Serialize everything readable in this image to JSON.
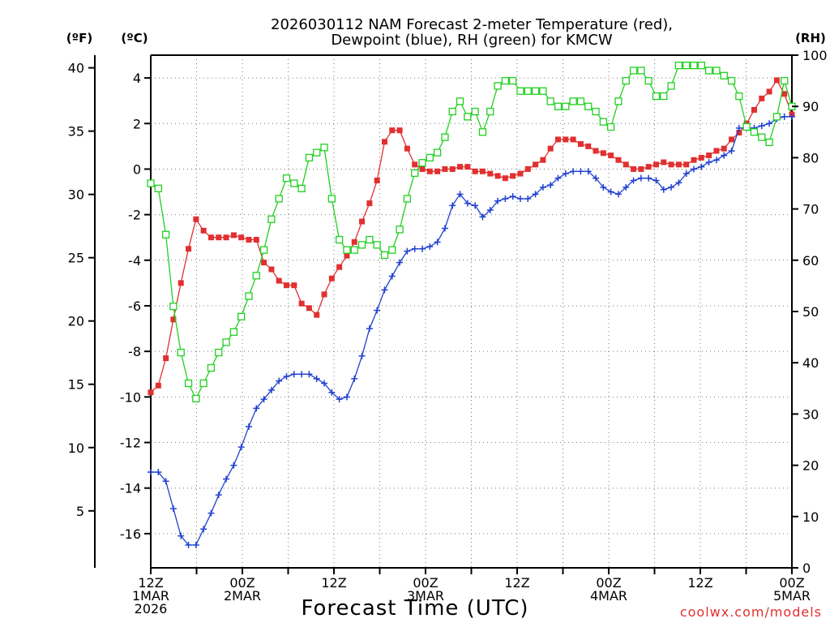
{
  "chart_data": {
    "type": "line",
    "title_line1": "2026030112 NAM Forecast 2-meter Temperature (red),",
    "title_line2": "Dewpoint (blue), RH (green) for KMCW",
    "xlabel": "Forecast Time (UTC)",
    "credit": "coolwx.com/models",
    "units": {
      "fahrenheit": "(ºF)",
      "celsius": "(ºC)",
      "rh": "(RH)"
    },
    "x_range_hours": [
      0,
      84
    ],
    "x_ticks": [
      {
        "hour": 0,
        "lines": [
          "12Z",
          "1MAR",
          "2026"
        ]
      },
      {
        "hour": 12,
        "lines": [
          "00Z",
          "2MAR"
        ]
      },
      {
        "hour": 24,
        "lines": [
          "12Z"
        ]
      },
      {
        "hour": 36,
        "lines": [
          "00Z",
          "3MAR"
        ]
      },
      {
        "hour": 48,
        "lines": [
          "12Z"
        ]
      },
      {
        "hour": 60,
        "lines": [
          "00Z",
          "4MAR"
        ]
      },
      {
        "hour": 72,
        "lines": [
          "12Z"
        ]
      },
      {
        "hour": 84,
        "lines": [
          "00Z",
          "5MAR"
        ]
      }
    ],
    "celsius_axis": {
      "min": -17.5,
      "max": 5,
      "ticks": [
        4,
        2,
        0,
        -2,
        -4,
        -6,
        -8,
        -10,
        -12,
        -14,
        -16
      ]
    },
    "fahrenheit_axis": {
      "ticks": [
        40,
        35,
        30,
        25,
        20,
        15,
        10,
        5
      ]
    },
    "rh_axis": {
      "min": 0,
      "max": 100,
      "ticks": [
        100,
        90,
        80,
        70,
        60,
        50,
        40,
        30,
        20,
        10,
        0
      ]
    },
    "grid": true,
    "series": [
      {
        "name": "Temperature",
        "color": "#e03030",
        "marker": "filled-square",
        "axis": "celsius",
        "values": [
          -9.8,
          -9.5,
          -8.3,
          -6.6,
          -5.0,
          -3.5,
          -2.2,
          -2.7,
          -3.0,
          -3.0,
          -3.0,
          -2.9,
          -3.0,
          -3.1,
          -3.1,
          -4.1,
          -4.4,
          -4.9,
          -5.1,
          -5.1,
          -5.9,
          -6.1,
          -6.4,
          -5.5,
          -4.8,
          -4.3,
          -3.8,
          -3.2,
          -2.3,
          -1.5,
          -0.5,
          1.2,
          1.7,
          1.7,
          0.9,
          0.2,
          0.0,
          -0.1,
          -0.1,
          0.0,
          0.0,
          0.1,
          0.1,
          -0.1,
          -0.1,
          -0.2,
          -0.3,
          -0.4,
          -0.3,
          -0.2,
          0.0,
          0.2,
          0.4,
          0.9,
          1.3,
          1.3,
          1.3,
          1.1,
          1.0,
          0.8,
          0.7,
          0.6,
          0.4,
          0.2,
          0.0,
          0.0,
          0.1,
          0.2,
          0.3,
          0.2,
          0.2,
          0.2,
          0.4,
          0.5,
          0.6,
          0.8,
          0.9,
          1.3,
          1.6,
          2.0,
          2.6,
          3.1,
          3.4,
          3.9,
          3.3,
          2.4
        ]
      },
      {
        "name": "Dewpoint",
        "color": "#2040d0",
        "marker": "plus",
        "axis": "celsius",
        "values": [
          -13.3,
          -13.3,
          -13.7,
          -14.9,
          -16.1,
          -16.5,
          -16.5,
          -15.8,
          -15.1,
          -14.3,
          -13.6,
          -13.0,
          -12.2,
          -11.3,
          -10.5,
          -10.1,
          -9.7,
          -9.3,
          -9.1,
          -9.0,
          -9.0,
          -9.0,
          -9.2,
          -9.4,
          -9.8,
          -10.1,
          -10.0,
          -9.2,
          -8.2,
          -7.0,
          -6.2,
          -5.3,
          -4.7,
          -4.1,
          -3.6,
          -3.5,
          -3.5,
          -3.4,
          -3.2,
          -2.6,
          -1.6,
          -1.1,
          -1.5,
          -1.6,
          -2.1,
          -1.8,
          -1.4,
          -1.3,
          -1.2,
          -1.3,
          -1.3,
          -1.1,
          -0.8,
          -0.7,
          -0.4,
          -0.2,
          -0.1,
          -0.1,
          -0.1,
          -0.4,
          -0.8,
          -1.0,
          -1.1,
          -0.8,
          -0.5,
          -0.4,
          -0.4,
          -0.5,
          -0.9,
          -0.8,
          -0.6,
          -0.2,
          0.0,
          0.1,
          0.3,
          0.4,
          0.6,
          0.8,
          1.8,
          1.8,
          1.8,
          1.9,
          2.0,
          2.2,
          2.3,
          2.3
        ]
      },
      {
        "name": "RH",
        "color": "#20d020",
        "marker": "open-square",
        "axis": "rh",
        "values": [
          75,
          74,
          65,
          51,
          42,
          36,
          33,
          36,
          39,
          42,
          44,
          46,
          49,
          53,
          57,
          62,
          68,
          72,
          76,
          75,
          74,
          80,
          81,
          82,
          72,
          64,
          62,
          62,
          63,
          64,
          63,
          61,
          62,
          66,
          72,
          77,
          79,
          80,
          81,
          84,
          89,
          91,
          88,
          89,
          85,
          89,
          94,
          95,
          95,
          93,
          93,
          93,
          93,
          91,
          90,
          90,
          91,
          91,
          90,
          89,
          87,
          86,
          91,
          95,
          97,
          97,
          95,
          92,
          92,
          94,
          98,
          98,
          98,
          98,
          97,
          97,
          96,
          95,
          92,
          86,
          85,
          84,
          83,
          88,
          95,
          90
        ]
      }
    ]
  }
}
